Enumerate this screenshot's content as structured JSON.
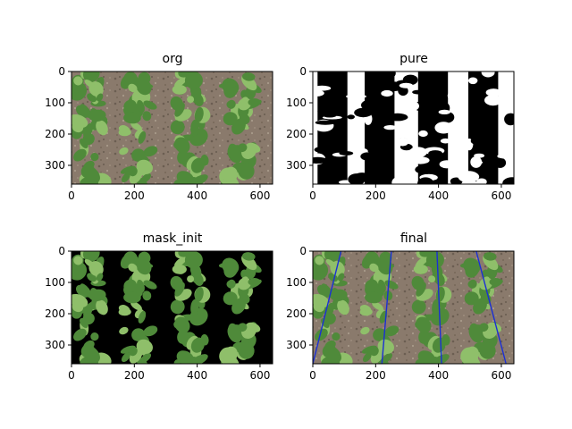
{
  "figure": {
    "panels": [
      {
        "title": "org",
        "kind": "crop-photo",
        "x_ticks": [
          "0",
          "200",
          "400",
          "600"
        ],
        "y_ticks": [
          "0",
          "100",
          "200",
          "300"
        ]
      },
      {
        "title": "pure",
        "kind": "binary-mask",
        "x_ticks": [
          "0",
          "200",
          "400",
          "600"
        ],
        "y_ticks": [
          "0",
          "100",
          "200",
          "300"
        ]
      },
      {
        "title": "mask_init",
        "kind": "masked-photo",
        "x_ticks": [
          "0",
          "200",
          "400",
          "600"
        ],
        "y_ticks": [
          "0",
          "100",
          "200",
          "300"
        ]
      },
      {
        "title": "final",
        "kind": "crop-photo-with-row-lines",
        "x_ticks": [
          "0",
          "200",
          "400",
          "600"
        ],
        "y_ticks": [
          "0",
          "100",
          "200",
          "300"
        ],
        "line_color": "#1a2fd6"
      }
    ],
    "image_extent": {
      "width": 640,
      "height": 360
    },
    "row_centers_x": [
      60,
      210,
      380,
      540
    ],
    "row_lines": [
      {
        "x_top": 90,
        "x_bottom": 0
      },
      {
        "x_top": 250,
        "x_bottom": 220
      },
      {
        "x_top": 395,
        "x_bottom": 410
      },
      {
        "x_top": 520,
        "x_bottom": 615
      }
    ],
    "colors": {
      "soil": "#8a7a6c",
      "soil_dark": "#6b5e52",
      "plant": "#4f8a3a",
      "plant_light": "#8fbf6a",
      "mask_bg": "#000000",
      "mask_fg": "#ffffff"
    }
  }
}
